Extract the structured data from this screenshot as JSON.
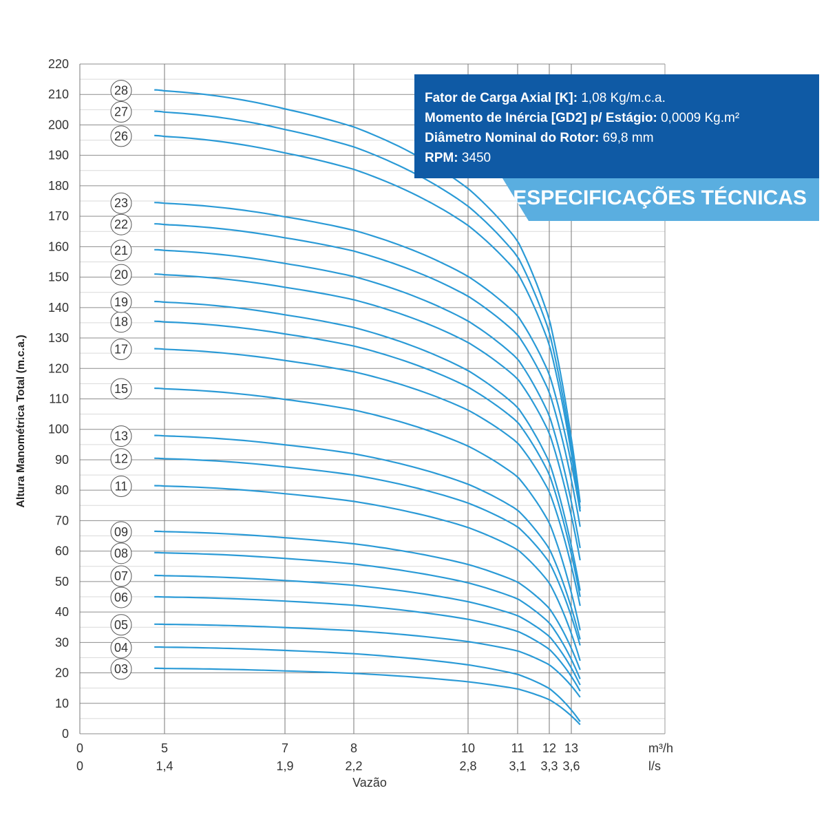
{
  "chart_data": {
    "type": "line",
    "ylabel": "Altura Manométrica Total (m.c.a.)",
    "xlabel": "Vazão",
    "ylim": [
      0,
      220
    ],
    "yticks": [
      0,
      10,
      20,
      30,
      40,
      50,
      60,
      70,
      80,
      90,
      100,
      110,
      120,
      130,
      140,
      150,
      160,
      170,
      180,
      190,
      200,
      210,
      220
    ],
    "x_units_top": "m³/h",
    "x_units_bottom": "l/s",
    "xticks": [
      {
        "q": 0,
        "top": "0",
        "bottom": "0"
      },
      {
        "q": 5,
        "top": "5",
        "bottom": "1,4"
      },
      {
        "q": 7,
        "top": "7",
        "bottom": "1,9"
      },
      {
        "q": 8,
        "top": "8",
        "bottom": "2,2"
      },
      {
        "q": 10,
        "top": "10",
        "bottom": "2,8"
      },
      {
        "q": 11,
        "top": "11",
        "bottom": "3,1"
      },
      {
        "q": 12,
        "top": "12",
        "bottom": "3,3"
      },
      {
        "q": 13,
        "top": "13",
        "bottom": "3,6"
      }
    ],
    "series": [
      {
        "name": "03",
        "start_head": 21.5,
        "end_head": 3
      },
      {
        "name": "04",
        "start_head": 28.5,
        "end_head": 4
      },
      {
        "name": "05",
        "start_head": 36,
        "end_head": 12
      },
      {
        "name": "06",
        "start_head": 45,
        "end_head": 14
      },
      {
        "name": "07",
        "start_head": 52,
        "end_head": 16
      },
      {
        "name": "08",
        "start_head": 59.5,
        "end_head": 18
      },
      {
        "name": "09",
        "start_head": 66.5,
        "end_head": 21
      },
      {
        "name": "11",
        "start_head": 81.5,
        "end_head": 24
      },
      {
        "name": "12",
        "start_head": 90.5,
        "end_head": 29
      },
      {
        "name": "13",
        "start_head": 98,
        "end_head": 31
      },
      {
        "name": "15",
        "start_head": 113.5,
        "end_head": 34
      },
      {
        "name": "17",
        "start_head": 126.5,
        "end_head": 42
      },
      {
        "name": "18",
        "start_head": 135.5,
        "end_head": 45
      },
      {
        "name": "19",
        "start_head": 142,
        "end_head": 47
      },
      {
        "name": "20",
        "start_head": 151,
        "end_head": 57
      },
      {
        "name": "21",
        "start_head": 159,
        "end_head": 61
      },
      {
        "name": "22",
        "start_head": 167.5,
        "end_head": 68
      },
      {
        "name": "23",
        "start_head": 174.5,
        "end_head": 73
      },
      {
        "name": "26",
        "start_head": 196.5,
        "end_head": 73
      },
      {
        "name": "27",
        "start_head": 204.5,
        "end_head": 74
      },
      {
        "name": "28",
        "start_head": 211.5,
        "end_head": 76
      }
    ],
    "q_min": 4.4,
    "q_max": 13.4,
    "line_color": "#2a9ad6",
    "grid": true
  },
  "specs": {
    "lines": [
      {
        "label": "Fator de Carga Axial [K]:",
        "value": " 1,08 Kg/m.c.a."
      },
      {
        "label": "Momento de Inércia [GD2] p/ Estágio:",
        "value": " 0,0009 Kg.m²"
      },
      {
        "label": "Diâmetro Nominal do Rotor:",
        "value": " 69,8 mm"
      },
      {
        "label": "RPM:",
        "value": " 3450"
      }
    ],
    "banner": "ESPECIFICAÇÕES TÉCNICAS",
    "box_color": "#0f5aa5",
    "banner_color": "#5aaee0"
  }
}
